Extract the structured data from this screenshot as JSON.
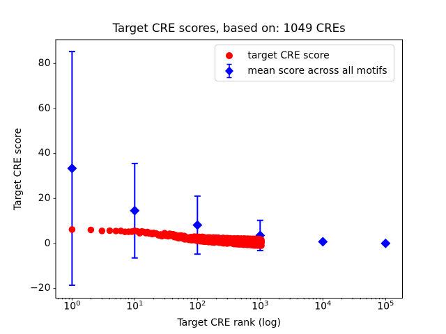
{
  "chart_data": {
    "type": "scatter",
    "title": "Target CRE scores, based on: 1049 CREs",
    "xlabel": "Target CRE rank (log)",
    "ylabel": "Target CRE score",
    "x_scale": "log",
    "xlim": [
      0.55,
      185000
    ],
    "ylim": [
      -24.2,
      90.6
    ],
    "x_ticks": [
      1,
      10,
      100,
      1000,
      10000,
      100000
    ],
    "x_ticklabels": [
      "10^0",
      "10^1",
      "10^2",
      "10^3",
      "10^4",
      "10^5"
    ],
    "y_ticks": [
      -20,
      0,
      20,
      40,
      60,
      80
    ],
    "y_ticklabels": [
      "−20",
      "0",
      "20",
      "40",
      "60",
      "80"
    ],
    "grid": "off",
    "legend_position": "upper right",
    "n_cres": 1049,
    "series": [
      {
        "name": "target CRE score",
        "marker": "circle",
        "color": "#ff0000",
        "n_points": 1049,
        "profile_rank_score": [
          [
            1,
            6.2
          ],
          [
            2,
            6.2
          ],
          [
            3,
            5.6
          ],
          [
            4,
            5.8
          ],
          [
            5,
            5.6
          ],
          [
            7,
            5.5
          ],
          [
            10,
            5.2
          ],
          [
            15,
            4.7
          ],
          [
            20,
            4.4
          ],
          [
            30,
            3.9
          ],
          [
            50,
            3.1
          ],
          [
            70,
            2.6
          ],
          [
            100,
            2.1
          ],
          [
            150,
            1.75
          ],
          [
            200,
            1.5
          ],
          [
            300,
            1.2
          ],
          [
            500,
            0.9
          ],
          [
            700,
            0.7
          ],
          [
            1049,
            0.5
          ]
        ]
      },
      {
        "name": "mean score across all motifs",
        "marker": "diamond",
        "color": "#0000ff",
        "x": [
          1,
          10,
          100,
          1000,
          10000,
          100000
        ],
        "y": [
          33.4,
          14.6,
          8.2,
          3.6,
          0.8,
          0.1
        ],
        "yerr": [
          51.9,
          21.0,
          12.9,
          6.7,
          0.4,
          0.2
        ]
      }
    ]
  }
}
